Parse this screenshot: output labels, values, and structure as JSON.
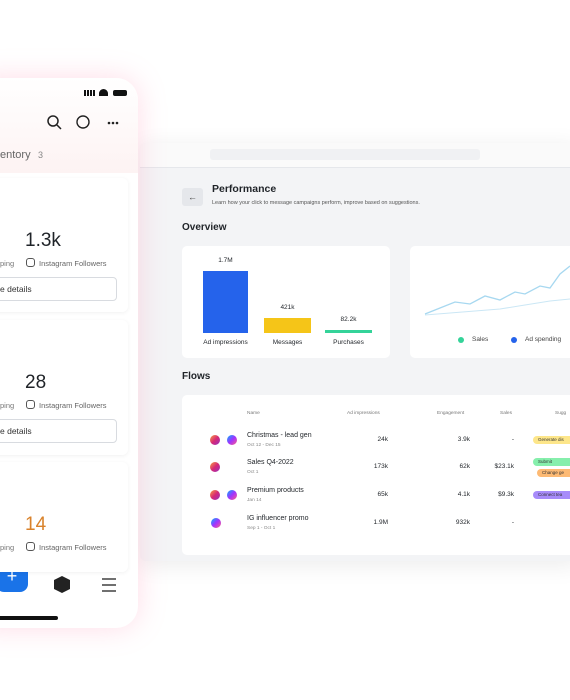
{
  "phone": {
    "tab": "entory",
    "tab_count": 3,
    "cards": [
      {
        "value": "1.3k",
        "left_label": "ping",
        "metric": "Instagram Followers",
        "button": "e details"
      },
      {
        "value": 28,
        "left_label": "ping",
        "metric": "Instagram Followers",
        "button": "e details"
      },
      {
        "value": 14,
        "left_label": "ping",
        "metric": "Instagram Followers",
        "value_color": "#d9822b"
      }
    ]
  },
  "dashboard": {
    "title": "Performance",
    "subtitle": "Learn how your click to message campaigns perform, improve based on suggestions.",
    "overview": "Overview",
    "bars": {
      "categories": [
        "Ad impressions",
        "Messages",
        "Purchases"
      ],
      "values": [
        1700000,
        421000,
        82200
      ],
      "value_labels": [
        "1.7M",
        "421k",
        "82.2k"
      ],
      "colors": [
        "#2563eb",
        "#f5c518",
        "#34d399"
      ]
    },
    "legend": [
      {
        "name": "Sales",
        "color": "#34d399"
      },
      {
        "name": "Ad spending",
        "color": "#2563eb"
      }
    ],
    "flows": "Flows",
    "table": {
      "headers": [
        "Name",
        "Ad impressions",
        "Engagement",
        "Sales",
        "Sugg"
      ],
      "rows": [
        {
          "name": "Christmas - lead gen",
          "date": "Oct 12 - Dec 15",
          "impressions": "24k",
          "engagement": "3.9k",
          "sales": "-",
          "chips": [
            {
              "text": "Generate dis",
              "color": "#fde68a"
            }
          ]
        },
        {
          "name": "Sales Q4-2022",
          "date": "Oct 1",
          "impressions": "173k",
          "engagement": "62k",
          "sales": "$23.1k",
          "chips": [
            {
              "text": "Submit",
              "color": "#86efac"
            },
            {
              "text": "Change ge",
              "color": "#fdba74"
            }
          ]
        },
        {
          "name": "Premium products",
          "date": "Jan 14",
          "impressions": "65k",
          "engagement": "4.1k",
          "sales": "$9.3k",
          "chips": [
            {
              "text": "Connect tea",
              "color": "#a78bfa"
            }
          ]
        },
        {
          "name": "IG influencer promo",
          "date": "Sep 1 - Oct 1",
          "impressions": "1.9M",
          "engagement": "932k",
          "sales": "-",
          "chips": []
        }
      ]
    }
  }
}
